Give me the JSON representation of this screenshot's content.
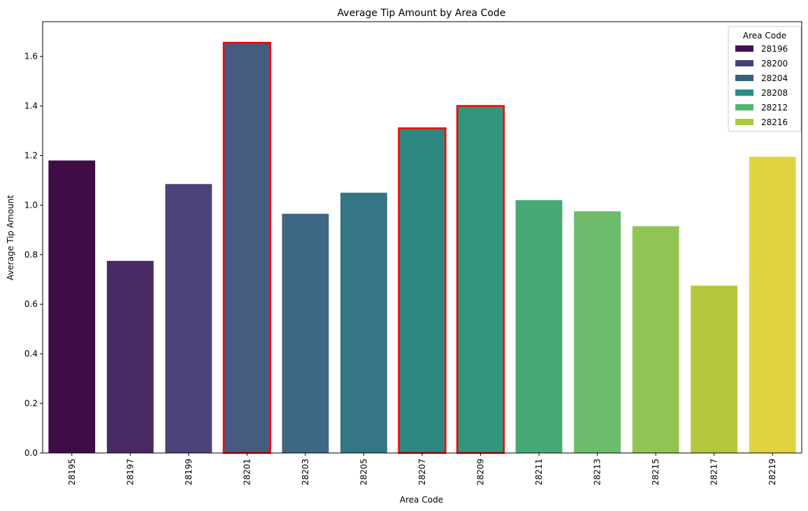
{
  "chart_data": {
    "type": "bar",
    "title": "Average Tip Amount by Area Code",
    "xlabel": "Area Code",
    "ylabel": "Average Tip Amount",
    "ylim": [
      0,
      1.74
    ],
    "yticks": [
      0.0,
      0.2,
      0.4,
      0.6,
      0.8,
      1.0,
      1.2,
      1.4,
      1.6
    ],
    "ytick_labels": [
      "0.0",
      "0.2",
      "0.4",
      "0.6",
      "0.8",
      "1.0",
      "1.2",
      "1.4",
      "1.6"
    ],
    "categories": [
      "28195",
      "28197",
      "28199",
      "28201",
      "28203",
      "28205",
      "28207",
      "28209",
      "28211",
      "28213",
      "28215",
      "28217",
      "28219"
    ],
    "values": [
      1.18,
      0.775,
      1.085,
      1.655,
      0.965,
      1.05,
      1.31,
      1.4,
      1.02,
      0.975,
      0.915,
      0.675,
      1.195
    ],
    "bar_colors": [
      "#3f0c47",
      "#482a64",
      "#4a447b",
      "#465b80",
      "#3d6782",
      "#347683",
      "#2e8780",
      "#32967d",
      "#46a975",
      "#6cbc6c",
      "#91c553",
      "#b7c73b",
      "#e1d340"
    ],
    "highlighted": [
      "28201",
      "28207",
      "28209"
    ],
    "highlight_color": "#ff0000",
    "grid": false,
    "legend": {
      "title": "Area Code",
      "placement": "top-right",
      "entries": [
        {
          "label": "28196",
          "color": "#440f4e"
        },
        {
          "label": "28200",
          "color": "#453f7b"
        },
        {
          "label": "28204",
          "color": "#35617c"
        },
        {
          "label": "28208",
          "color": "#2a8c84"
        },
        {
          "label": "28212",
          "color": "#4db86e"
        },
        {
          "label": "28216",
          "color": "#a6cb3e"
        }
      ]
    }
  }
}
